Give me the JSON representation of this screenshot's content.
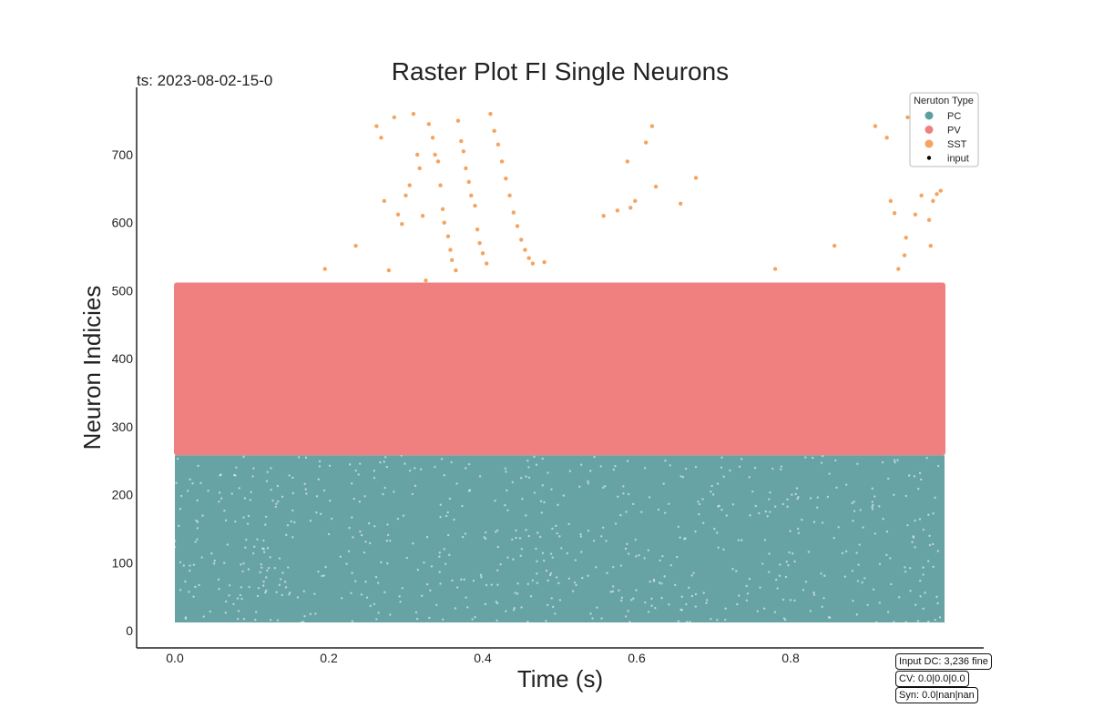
{
  "timestamp_label": "ts: 2023-08-02-15-0",
  "info_boxes": [
    "Input DC: 3,236 fine",
    "CV: 0.0|0.0|0.0",
    "Syn: 0.0|nan|nan"
  ],
  "colors": {
    "PC": "#5f9ea0",
    "PV": "#f08080",
    "SST": "#f4a460",
    "input": "#000000"
  },
  "chart_data": {
    "type": "scatter",
    "title": "Raster Plot FI Single Neurons",
    "xlabel": "Time (s)",
    "ylabel": "Neuron Indicies",
    "xlim": [
      -0.05,
      1.05
    ],
    "ylim": [
      -25,
      795
    ],
    "xticks": [
      0.0,
      0.2,
      0.4,
      0.6,
      0.8
    ],
    "xtick_labels": [
      "0.0",
      "0.2",
      "0.4",
      "0.6",
      "0.8"
    ],
    "yticks": [
      0,
      100,
      200,
      300,
      400,
      500,
      600,
      700
    ],
    "ytick_labels": [
      "0",
      "100",
      "200",
      "300",
      "400",
      "500",
      "600",
      "700"
    ],
    "grid": false,
    "legend": {
      "title": "Neruton Type",
      "placement": "top-right",
      "entries": [
        "PC",
        "PV",
        "SST",
        "input"
      ]
    },
    "series": [
      {
        "name": "PC",
        "time_range": [
          0.0,
          1.0
        ],
        "neuron_range": [
          12,
          258
        ],
        "description_values": "dense spiking across all times"
      },
      {
        "name": "PV",
        "time_range": [
          0.0,
          1.0
        ],
        "neuron_range": [
          258,
          512
        ],
        "description_values": "saturated spiking across all times"
      },
      {
        "name": "SST",
        "points": [
          [
            0.195,
            532
          ],
          [
            0.235,
            566
          ],
          [
            0.262,
            742
          ],
          [
            0.268,
            725
          ],
          [
            0.272,
            632
          ],
          [
            0.278,
            530
          ],
          [
            0.285,
            755
          ],
          [
            0.29,
            612
          ],
          [
            0.295,
            598
          ],
          [
            0.3,
            640
          ],
          [
            0.305,
            655
          ],
          [
            0.31,
            760
          ],
          [
            0.315,
            700
          ],
          [
            0.318,
            680
          ],
          [
            0.322,
            610
          ],
          [
            0.326,
            515
          ],
          [
            0.33,
            745
          ],
          [
            0.335,
            725
          ],
          [
            0.338,
            700
          ],
          [
            0.342,
            690
          ],
          [
            0.345,
            655
          ],
          [
            0.348,
            620
          ],
          [
            0.35,
            600
          ],
          [
            0.355,
            580
          ],
          [
            0.358,
            560
          ],
          [
            0.36,
            545
          ],
          [
            0.365,
            530
          ],
          [
            0.368,
            750
          ],
          [
            0.372,
            720
          ],
          [
            0.375,
            705
          ],
          [
            0.378,
            680
          ],
          [
            0.382,
            660
          ],
          [
            0.385,
            640
          ],
          [
            0.39,
            625
          ],
          [
            0.393,
            590
          ],
          [
            0.396,
            570
          ],
          [
            0.4,
            555
          ],
          [
            0.405,
            540
          ],
          [
            0.41,
            760
          ],
          [
            0.415,
            735
          ],
          [
            0.42,
            715
          ],
          [
            0.425,
            690
          ],
          [
            0.43,
            665
          ],
          [
            0.435,
            640
          ],
          [
            0.44,
            615
          ],
          [
            0.445,
            595
          ],
          [
            0.45,
            575
          ],
          [
            0.455,
            560
          ],
          [
            0.46,
            548
          ],
          [
            0.465,
            540
          ],
          [
            0.48,
            542
          ],
          [
            0.557,
            610
          ],
          [
            0.575,
            618
          ],
          [
            0.588,
            690
          ],
          [
            0.592,
            622
          ],
          [
            0.598,
            632
          ],
          [
            0.612,
            718
          ],
          [
            0.62,
            742
          ],
          [
            0.625,
            653
          ],
          [
            0.657,
            628
          ],
          [
            0.677,
            666
          ],
          [
            0.78,
            532
          ],
          [
            0.857,
            566
          ],
          [
            0.91,
            742
          ],
          [
            0.925,
            725
          ],
          [
            0.93,
            632
          ],
          [
            0.935,
            614
          ],
          [
            0.94,
            532
          ],
          [
            0.948,
            552
          ],
          [
            0.95,
            578
          ],
          [
            0.952,
            755
          ],
          [
            0.962,
            612
          ],
          [
            0.97,
            640
          ],
          [
            0.98,
            604
          ],
          [
            0.982,
            566
          ],
          [
            0.985,
            632
          ],
          [
            0.99,
            642
          ],
          [
            0.995,
            647
          ]
        ]
      },
      {
        "name": "input",
        "points": []
      }
    ]
  }
}
